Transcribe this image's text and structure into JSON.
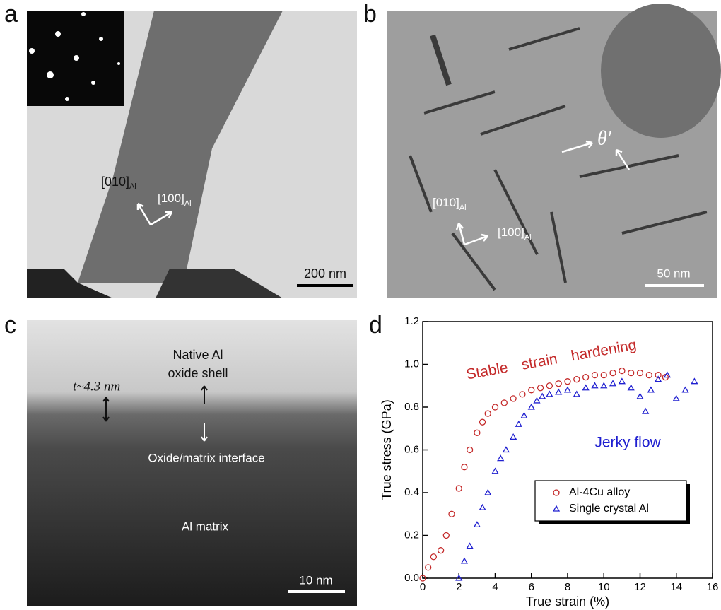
{
  "figure": {
    "labels": [
      "a",
      "b",
      "c",
      "d"
    ],
    "panel_a": {
      "axis1": "[010]",
      "axis1_sub": "Al",
      "axis2": "[100]",
      "axis2_sub": "Al",
      "scale_bar": "200 nm"
    },
    "panel_b": {
      "axis1": "[010]",
      "axis1_sub": "Al",
      "axis2": "[100]",
      "axis2_sub": "Al",
      "precipitate": "θ′",
      "scale_bar": "50 nm"
    },
    "panel_c": {
      "thickness": "t~4.3 nm",
      "shell": [
        "Native Al",
        "oxide shell"
      ],
      "interface": "Oxide/matrix interface",
      "matrix": "Al matrix",
      "scale_bar": "10 nm"
    }
  },
  "chart_data": {
    "type": "scatter",
    "xlabel": "True strain (%)",
    "ylabel": "True stress (GPa)",
    "xlim": [
      0,
      16
    ],
    "ylim": [
      0,
      1.2
    ],
    "xticks": [
      0,
      2,
      4,
      6,
      8,
      10,
      12,
      14,
      16
    ],
    "yticks": [
      {
        "value": 0,
        "label": "0.0"
      },
      0.2,
      0.4,
      0.6,
      0.8,
      {
        "value": 1,
        "label": "1.0"
      },
      1.2
    ],
    "annotations": [
      {
        "text": "Stable strain hardening",
        "color": "#c42a2a"
      },
      {
        "text": "Jerky flow",
        "color": "#2020d0"
      }
    ],
    "series": [
      {
        "name": "Al-4Cu alloy",
        "color": "#c42a2a",
        "marker": "circle",
        "x": [
          0,
          0.3,
          0.6,
          1,
          1.3,
          1.6,
          2,
          2.3,
          2.6,
          3,
          3.3,
          3.6,
          4,
          4.5,
          5,
          5.5,
          6,
          6.5,
          7,
          7.5,
          8,
          8.5,
          9,
          9.5,
          10,
          10.5,
          11,
          11.5,
          12,
          12.5,
          13,
          13.4
        ],
        "values": [
          0,
          0.05,
          0.1,
          0.13,
          0.2,
          0.3,
          0.42,
          0.52,
          0.6,
          0.68,
          0.73,
          0.77,
          0.8,
          0.82,
          0.84,
          0.86,
          0.88,
          0.89,
          0.9,
          0.91,
          0.92,
          0.93,
          0.94,
          0.95,
          0.95,
          0.96,
          0.97,
          0.96,
          0.96,
          0.95,
          0.95,
          0.94
        ]
      },
      {
        "name": "Single crystal Al",
        "color": "#2020d0",
        "marker": "triangle",
        "x": [
          2,
          2.3,
          2.6,
          3,
          3.3,
          3.6,
          4,
          4.3,
          4.6,
          5,
          5.3,
          5.6,
          6,
          6.3,
          6.6,
          7,
          7.5,
          8,
          8.5,
          9,
          9.5,
          10,
          10.5,
          11,
          11.5,
          12,
          12.3,
          12.6,
          13,
          13.5,
          14,
          14.5,
          15
        ],
        "values": [
          0,
          0.08,
          0.15,
          0.25,
          0.33,
          0.4,
          0.5,
          0.56,
          0.6,
          0.66,
          0.72,
          0.76,
          0.8,
          0.83,
          0.85,
          0.86,
          0.87,
          0.88,
          0.86,
          0.89,
          0.9,
          0.9,
          0.91,
          0.92,
          0.89,
          0.85,
          0.78,
          0.88,
          0.93,
          0.95,
          0.84,
          0.88,
          0.92
        ]
      }
    ]
  }
}
